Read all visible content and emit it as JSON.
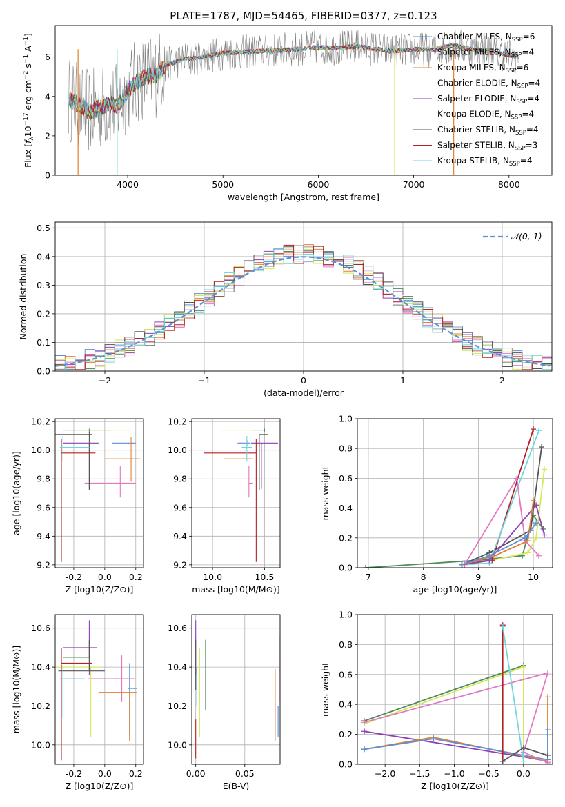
{
  "figure": {
    "title": "PLATE=1787, MJD=54465, FIBERID=0377, z=0.123"
  },
  "colors": {
    "Chabrier MILES": "#5b8fd9",
    "Salpeter MILES": "#e377c2",
    "Kroupa MILES": "#e0802e",
    "Chabrier ELODIE": "#4e8a5a",
    "Salpeter ELODIE": "#8e3fb5",
    "Kroupa ELODIE": "#d4e85a",
    "Chabrier STELIB": "#555555",
    "Salpeter STELIB": "#b22222",
    "Kroupa STELIB": "#6fd6de",
    "spectrum": "#808080",
    "normal": "#5b8fd9"
  },
  "chart_data": [
    {
      "id": "spectrum",
      "type": "line",
      "xlabel": "wavelength [Angstrom, rest frame]",
      "ylabel": "Flux [f_λ10^-17 erg cm^-2 s^-1 A^-1]",
      "xlim": [
        3240,
        8450
      ],
      "ylim": [
        0,
        7.6
      ],
      "xticks": [
        4000,
        5000,
        6000,
        7000,
        8000
      ],
      "yticks": [
        0,
        2,
        4,
        6
      ],
      "grid": false,
      "legend_position": "top-right",
      "legend": [
        {
          "label": "Chabrier MILES, N",
          "sub": "SSP",
          "value": "=6",
          "model": "Chabrier MILES"
        },
        {
          "label": "Salpeter MILES, N",
          "sub": "SSP",
          "value": "=4",
          "model": "Salpeter MILES"
        },
        {
          "label": "Kroupa MILES, N",
          "sub": "SSP",
          "value": "=6",
          "model": "Kroupa MILES"
        },
        {
          "label": "Chabrier ELODIE, N",
          "sub": "SSP",
          "value": "=4",
          "model": "Chabrier ELODIE"
        },
        {
          "label": "Salpeter ELODIE, N",
          "sub": "SSP",
          "value": "=4",
          "model": "Salpeter ELODIE"
        },
        {
          "label": "Kroupa ELODIE, N",
          "sub": "SSP",
          "value": "=4",
          "model": "Kroupa ELODIE"
        },
        {
          "label": "Chabrier STELIB, N",
          "sub": "SSP",
          "value": "=4",
          "model": "Chabrier STELIB"
        },
        {
          "label": "Salpeter STELIB, N",
          "sub": "SSP",
          "value": "=3",
          "model": "Salpeter STELIB"
        },
        {
          "label": "Kroupa STELIB, N",
          "sub": "SSP",
          "value": "=4",
          "model": "Kroupa STELIB"
        }
      ],
      "continuum": {
        "x": [
          3380,
          3500,
          3600,
          3700,
          3800,
          3900,
          4000,
          4100,
          4200,
          4300,
          4400,
          4600,
          4800,
          5000,
          5200,
          5400,
          5600,
          5800,
          6000,
          6200,
          6400,
          6600,
          6800,
          7000,
          7200,
          7400,
          7600,
          7800,
          8000,
          8100
        ],
        "y": [
          3.9,
          3.5,
          3.2,
          3.4,
          3.6,
          3.5,
          4.3,
          4.8,
          5.0,
          5.1,
          5.6,
          5.9,
          6.0,
          6.2,
          6.25,
          6.3,
          6.35,
          6.4,
          6.5,
          6.45,
          6.55,
          6.4,
          6.3,
          6.4,
          6.35,
          6.6,
          6.4,
          6.3,
          6.1,
          6.0
        ]
      }
    },
    {
      "id": "residuals",
      "type": "step",
      "xlabel": "(data-model)/error",
      "ylabel": "Normed distribution",
      "xlim": [
        -2.5,
        2.5
      ],
      "ylim": [
        0,
        0.52
      ],
      "xticks": [
        -2,
        -1,
        0,
        1,
        2
      ],
      "yticks": [
        0.0,
        0.1,
        0.2,
        0.3,
        0.4,
        0.5
      ],
      "grid": true,
      "legend_position": "top-right",
      "normal_label": "𝒩(0, 1)"
    },
    {
      "id": "age-Z",
      "type": "errorbar",
      "xlabel": "Z [log10(Z/Z⊙)]",
      "ylabel": "age [log10(age/yr)]",
      "xlim": [
        -0.32,
        0.25
      ],
      "ylim": [
        9.18,
        10.22
      ],
      "xticks": [
        -0.2,
        0.0,
        0.2
      ],
      "yticks": [
        9.2,
        9.4,
        9.6,
        9.8,
        10.0,
        10.2
      ],
      "grid": true,
      "points": [
        {
          "model": "Chabrier MILES",
          "x": 0.15,
          "xerr": [
            0.1,
            0.05
          ],
          "y": 10.05,
          "yerr": [
            0.02,
            0.02
          ]
        },
        {
          "model": "Salpeter MILES",
          "x": 0.1,
          "xerr": [
            0.23,
            0.1
          ],
          "y": 9.77,
          "yerr": [
            0.1,
            0.12
          ]
        },
        {
          "model": "Kroupa MILES",
          "x": 0.17,
          "xerr": [
            0.17,
            0.06
          ],
          "y": 9.94,
          "yerr": [
            0.16,
            0.15
          ]
        },
        {
          "model": "Chabrier ELODIE",
          "x": -0.1,
          "xerr": [
            0.17,
            0.13
          ],
          "y": 10.14,
          "yerr": [
            0.01,
            0.01
          ]
        },
        {
          "model": "Salpeter ELODIE",
          "x": -0.1,
          "xerr": [
            0.17,
            0.06
          ],
          "y": 10.05,
          "yerr": [
            0.32,
            0.0
          ]
        },
        {
          "model": "Kroupa ELODIE",
          "x": 0.15,
          "xerr": [
            0.28,
            0.03
          ],
          "y": 10.14,
          "yerr": [
            0.02,
            0.02
          ]
        },
        {
          "model": "Chabrier STELIB",
          "x": -0.1,
          "xerr": [
            0.22,
            0.02
          ],
          "y": 10.11,
          "yerr": [
            0.39,
            0.02
          ]
        },
        {
          "model": "Salpeter STELIB",
          "x": -0.28,
          "xerr": [
            0.0,
            0.22
          ],
          "y": 9.98,
          "yerr": [
            0.76,
            0.1
          ]
        },
        {
          "model": "Kroupa STELIB",
          "x": -0.27,
          "xerr": [
            0.02,
            0.17
          ],
          "y": 10.02,
          "yerr": [
            0.1,
            0.08
          ]
        }
      ]
    },
    {
      "id": "age-mass",
      "type": "errorbar",
      "xlabel": "mass [log10(M/M⊙)]",
      "ylabel": "",
      "xlim": [
        9.8,
        10.65
      ],
      "ylim": [
        9.18,
        10.22
      ],
      "xticks": [
        10.0,
        10.5
      ],
      "yticks": [
        9.2,
        9.4,
        9.6,
        9.8,
        10.0,
        10.2
      ],
      "grid": true,
      "points": [
        {
          "model": "Chabrier MILES",
          "x": 10.34,
          "xerr": [
            0.1,
            0.02
          ],
          "y": 10.05,
          "yerr": [
            0.02,
            0.02
          ]
        },
        {
          "model": "Salpeter MILES",
          "x": 10.35,
          "xerr": [
            0.0,
            0.04
          ],
          "y": 9.77,
          "yerr": [
            0.1,
            0.12
          ]
        },
        {
          "model": "Kroupa MILES",
          "x": 10.29,
          "xerr": [
            0.18,
            0.1
          ],
          "y": 9.94,
          "yerr": [
            0.0,
            0.0
          ]
        },
        {
          "model": "Chabrier ELODIE",
          "x": 10.5,
          "xerr": [
            0.12,
            0.0
          ],
          "y": 10.14,
          "yerr": [
            0.01,
            0.01
          ]
        },
        {
          "model": "Salpeter ELODIE",
          "x": 10.47,
          "xerr": [
            0.1,
            0.16
          ],
          "y": 10.05,
          "yerr": [
            0.32,
            0.0
          ]
        },
        {
          "model": "Kroupa ELODIE",
          "x": 10.38,
          "xerr": [
            0.32,
            0.06
          ],
          "y": 10.14,
          "yerr": [
            0.0,
            0.0
          ]
        },
        {
          "model": "Chabrier STELIB",
          "x": 10.45,
          "xerr": [
            0.0,
            0.08
          ],
          "y": 10.11,
          "yerr": [
            0.39,
            0.0
          ]
        },
        {
          "model": "Salpeter STELIB",
          "x": 10.42,
          "xerr": [
            0.5,
            0.0
          ],
          "y": 9.98,
          "yerr": [
            0.76,
            0.1
          ]
        },
        {
          "model": "Kroupa STELIB",
          "x": 10.33,
          "xerr": [
            0.05,
            0.05
          ],
          "y": 10.02,
          "yerr": [
            0.1,
            0.08
          ]
        }
      ]
    },
    {
      "id": "mass-Z",
      "type": "errorbar",
      "xlabel": "Z [log10(Z/Z⊙)]",
      "ylabel": "mass [log10(M/M⊙)]",
      "xlim": [
        -0.32,
        0.25
      ],
      "ylim": [
        9.9,
        10.67
      ],
      "xticks": [
        -0.2,
        0.0,
        0.2
      ],
      "yticks": [
        10.0,
        10.2,
        10.4,
        10.6
      ],
      "grid": true,
      "points": [
        {
          "model": "Chabrier MILES",
          "x": 0.16,
          "xerr": [
            0.01,
            0.05
          ],
          "y": 10.29,
          "yerr": [
            0.24,
            0.13
          ]
        },
        {
          "model": "Salpeter MILES",
          "x": 0.11,
          "xerr": [
            0.22,
            0.08
          ],
          "y": 10.34,
          "yerr": [
            0.12,
            0.12
          ]
        },
        {
          "model": "Kroupa MILES",
          "x": 0.16,
          "xerr": [
            0.2,
            0.05
          ],
          "y": 10.27,
          "yerr": [
            0.25,
            0.0
          ]
        },
        {
          "model": "Chabrier ELODIE",
          "x": -0.1,
          "xerr": [
            0.17,
            0.0
          ],
          "y": 10.45,
          "yerr": [
            0.0,
            0.08
          ]
        },
        {
          "model": "Salpeter ELODIE",
          "x": -0.1,
          "xerr": [
            0.17,
            0.05
          ],
          "y": 10.5,
          "yerr": [
            0.14,
            0.14
          ]
        },
        {
          "model": "Kroupa ELODIE",
          "x": -0.09,
          "xerr": [
            0.25,
            0.06
          ],
          "y": 10.4,
          "yerr": [
            0.36,
            0.0
          ]
        },
        {
          "model": "Chabrier STELIB",
          "x": -0.1,
          "xerr": [
            0.2,
            0.1
          ],
          "y": 10.38,
          "yerr": [
            0.0,
            0.16
          ]
        },
        {
          "model": "Salpeter STELIB",
          "x": -0.28,
          "xerr": [
            0.0,
            0.2
          ],
          "y": 10.42,
          "yerr": [
            0.5,
            0.08
          ]
        },
        {
          "model": "Kroupa STELIB",
          "x": -0.27,
          "xerr": [
            0.02,
            0.14
          ],
          "y": 10.34,
          "yerr": [
            0.2,
            0.07
          ]
        }
      ]
    },
    {
      "id": "mass-EBV",
      "type": "errorbar",
      "xlabel": "E(B-V)",
      "ylabel": "",
      "xlim": [
        -0.004,
        0.086
      ],
      "ylim": [
        9.9,
        10.67
      ],
      "xticks": [
        0.0,
        0.05
      ],
      "xtick_labels": [
        "0.00",
        "0.05"
      ],
      "yticks": [
        10.0,
        10.2,
        10.4,
        10.6
      ],
      "grid": true,
      "points": [
        {
          "model": "Chabrier MILES",
          "x": 0.084,
          "xerr": [
            0,
            0
          ],
          "y": 10.2,
          "yerr": [
            0.16,
            0.0
          ]
        },
        {
          "model": "Salpeter MILES",
          "x": 0.085,
          "xerr": [
            0,
            0
          ],
          "y": 10.34,
          "yerr": [
            0.12,
            0.22
          ]
        },
        {
          "model": "Kroupa MILES",
          "x": 0.081,
          "xerr": [
            0,
            0
          ],
          "y": 10.2,
          "yerr": [
            0.18,
            0.19
          ]
        },
        {
          "model": "Chabrier ELODIE",
          "x": 0.01,
          "xerr": [
            0,
            0
          ],
          "y": 10.4,
          "yerr": [
            0.22,
            0.14
          ]
        },
        {
          "model": "Salpeter ELODIE",
          "x": 0.0,
          "xerr": [
            0,
            0
          ],
          "y": 10.5,
          "yerr": [
            0.14,
            0.14
          ]
        },
        {
          "model": "Kroupa ELODIE",
          "x": 0.004,
          "xerr": [
            0,
            0
          ],
          "y": 10.3,
          "yerr": [
            0.26,
            0.2
          ]
        },
        {
          "model": "Chabrier STELIB",
          "x": 0.0,
          "xerr": [
            0,
            0
          ],
          "y": 10.38,
          "yerr": [
            0.1,
            0.16
          ]
        },
        {
          "model": "Salpeter STELIB",
          "x": 0.0,
          "xerr": [
            0,
            0
          ],
          "y": 10.05,
          "yerr": [
            0.12,
            0.08
          ]
        },
        {
          "model": "Kroupa STELIB",
          "x": 0.001,
          "xerr": [
            0,
            0
          ],
          "y": 10.3,
          "yerr": [
            0.1,
            0.1
          ]
        }
      ]
    },
    {
      "id": "weight-age",
      "type": "line",
      "xlabel": "age [log10(age/yr)]",
      "ylabel": "mass weight",
      "xlim": [
        6.8,
        10.35
      ],
      "ylim": [
        0,
        1.0
      ],
      "xticks": [
        7,
        8,
        9,
        10
      ],
      "yticks": [
        0.0,
        0.2,
        0.4,
        0.6,
        0.8,
        1.0
      ],
      "grid": true,
      "series": [
        {
          "model": "Chabrier ELODIE",
          "x": [
            6.95,
            9.0,
            9.8,
            10.0,
            10.18
          ],
          "y": [
            0.0,
            0.05,
            0.08,
            0.35,
            0.26
          ]
        },
        {
          "model": "Kroupa ELODIE",
          "x": [
            8.7,
            9.25,
            9.9,
            10.05,
            10.2
          ],
          "y": [
            0.02,
            0.05,
            0.1,
            0.2,
            0.66
          ]
        },
        {
          "model": "Chabrier STELIB",
          "x": [
            8.7,
            9.2,
            9.95,
            10.15
          ],
          "y": [
            0.02,
            0.1,
            0.25,
            0.81
          ]
        },
        {
          "model": "Salpeter STELIB",
          "x": [
            8.7,
            9.25,
            10.0
          ],
          "y": [
            0.02,
            0.05,
            0.93
          ]
        },
        {
          "model": "Kroupa STELIB",
          "x": [
            8.7,
            9.2,
            10.1
          ],
          "y": [
            0.02,
            0.03,
            0.92
          ]
        },
        {
          "model": "Salpeter MILES",
          "x": [
            8.75,
            9.7,
            9.85,
            10.1
          ],
          "y": [
            0.02,
            0.6,
            0.18,
            0.08
          ]
        },
        {
          "model": "Salpeter ELODIE",
          "x": [
            8.7,
            9.2,
            10.05,
            10.2
          ],
          "y": [
            0.02,
            0.05,
            0.42,
            0.22
          ]
        },
        {
          "model": "Kroupa MILES",
          "x": [
            8.7,
            9.3,
            9.9,
            10.0
          ],
          "y": [
            0.02,
            0.08,
            0.18,
            0.45
          ]
        },
        {
          "model": "Chabrier MILES",
          "x": [
            8.7,
            9.2,
            9.85,
            10.05
          ],
          "y": [
            0.02,
            0.08,
            0.2,
            0.3
          ]
        }
      ]
    },
    {
      "id": "weight-Z",
      "type": "line",
      "xlabel": "Z [log10(Z/Z⊙)]",
      "ylabel": "mass weight",
      "xlim": [
        -2.4,
        0.42
      ],
      "ylim": [
        0,
        1.0
      ],
      "xticks": [
        -2.0,
        -1.5,
        -1.0,
        -0.5,
        0.0
      ],
      "yticks": [
        0.0,
        0.2,
        0.4,
        0.6,
        0.8,
        1.0
      ],
      "grid": true,
      "series": [
        {
          "model": "Chabrier ELODIE",
          "x": [
            -2.3,
            0.0,
            0.0
          ],
          "y": [
            0.29,
            0.66,
            0.0
          ]
        },
        {
          "model": "Kroupa ELODIE",
          "x": [
            -2.3,
            0.0,
            0.0
          ],
          "y": [
            0.27,
            0.65,
            0.02
          ]
        },
        {
          "model": "Salpeter ELODIE",
          "x": [
            -2.3,
            0.0,
            0.35
          ],
          "y": [
            0.22,
            0.05,
            0.02
          ]
        },
        {
          "model": "Kroupa MILES",
          "x": [
            -2.3,
            -1.3,
            0.35,
            0.35
          ],
          "y": [
            0.1,
            0.18,
            0.02,
            0.45
          ]
        },
        {
          "model": "Chabrier MILES",
          "x": [
            -2.3,
            -1.3,
            0.35,
            0.35
          ],
          "y": [
            0.1,
            0.17,
            0.03,
            0.23
          ]
        },
        {
          "model": "Salpeter MILES",
          "x": [
            -2.3,
            0.35,
            0.0,
            0.35
          ],
          "y": [
            0.28,
            0.61,
            0.08,
            0.01
          ]
        },
        {
          "model": "Salpeter STELIB",
          "x": [
            -0.3,
            -0.3,
            -0.3
          ],
          "y": [
            0.02,
            0.93,
            0.02
          ]
        },
        {
          "model": "Kroupa STELIB",
          "x": [
            -0.3,
            0.0,
            0.0
          ],
          "y": [
            0.92,
            0.02,
            0.06
          ]
        },
        {
          "model": "Chabrier STELIB",
          "x": [
            -0.3,
            0.0,
            0.35
          ],
          "y": [
            0.02,
            0.11,
            0.06
          ]
        }
      ]
    }
  ]
}
